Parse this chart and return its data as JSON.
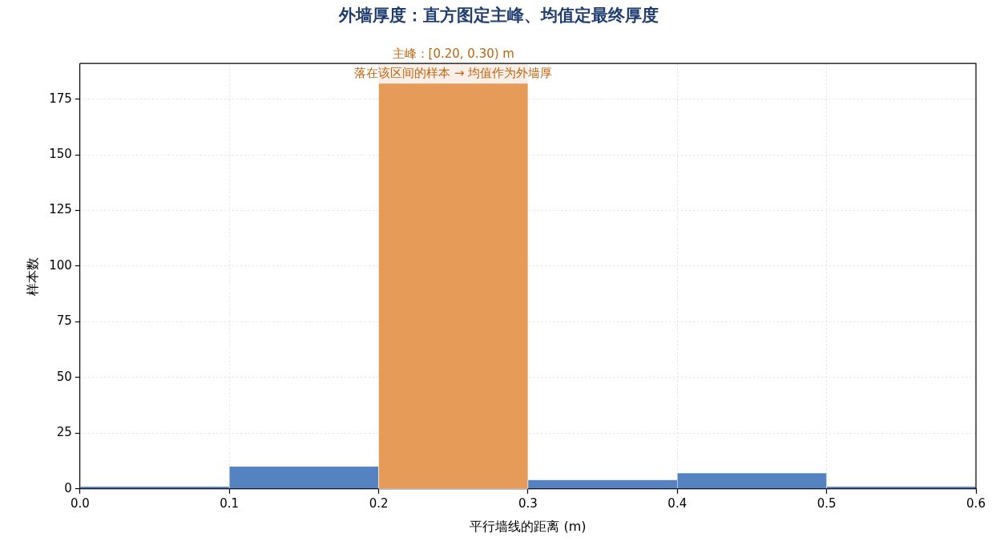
{
  "chart_data": {
    "type": "histogram",
    "title": "外墙厚度：直方图定主峰、均值定最终厚度",
    "xlabel": "平行墙线的距离 (m)",
    "ylabel": "样本数",
    "bins": [
      0,
      0.1,
      0.2,
      0.3,
      0.4,
      0.5,
      0.6
    ],
    "values": [
      1,
      10,
      182,
      4,
      7,
      1
    ],
    "colors": [
      "#5582c0",
      "#5582c0",
      "#e69c58",
      "#5582c0",
      "#5582c0",
      "#5582c0"
    ],
    "xlim": [
      0,
      0.6
    ],
    "xticks": [
      {
        "value": 0,
        "label": "0.0"
      },
      0.1,
      0.2,
      0.3,
      0.4,
      0.5,
      0.6
    ],
    "ylim": [
      0,
      191
    ],
    "yticks": [
      0,
      25,
      50,
      75,
      100,
      125,
      150,
      175
    ],
    "bands": [
      {
        "axis": "x",
        "from": 0.2,
        "to": 0.3,
        "color": "#fbf0e9"
      }
    ],
    "annotations": [
      {
        "text": "主峰：[0.20, 0.30) m\n落在该区间的样本 → 均值作为外墙厚",
        "x": 0.25,
        "y": 182
      }
    ],
    "grid": true,
    "legend": false
  }
}
